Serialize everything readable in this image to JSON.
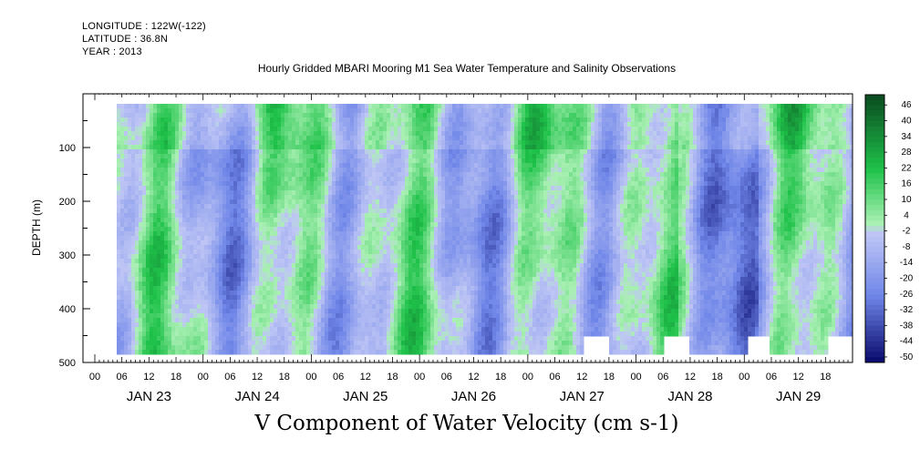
{
  "header": {
    "longitude": "LONGITUDE : 122W(-122)",
    "latitude": "LATITUDE : 36.8N",
    "year": "YEAR : 2013"
  },
  "chart_data": {
    "type": "heatmap",
    "title": "Hourly Gridded MBARI Mooring M1 Sea Water Temperature and Salinity Observations",
    "bottom_title": "V Component of Water Velocity (cm s-1)",
    "ylabel": "DEPTH (m)",
    "ylim": [
      500,
      0
    ],
    "y_ticks": [
      100,
      200,
      300,
      400,
      500
    ],
    "x_hour_labels": [
      "00",
      "06",
      "12",
      "18",
      "00",
      "06",
      "12",
      "18",
      "00",
      "06",
      "12",
      "18",
      "00",
      "06",
      "12",
      "18",
      "00",
      "06",
      "12",
      "18",
      "00",
      "06",
      "12",
      "18",
      "00",
      "06",
      "12",
      "18"
    ],
    "x_day_labels": [
      "JAN 23",
      "JAN 24",
      "JAN 25",
      "JAN 26",
      "JAN 27",
      "JAN 28",
      "JAN 29"
    ],
    "colorbar": {
      "min": -50,
      "max": 50,
      "tick_labels": [
        "46",
        "40",
        "34",
        "28",
        "22",
        "16",
        "10",
        "4",
        "-2",
        "-8",
        "-14",
        "-20",
        "-26",
        "-32",
        "-38",
        "-44",
        "-50"
      ]
    },
    "colors": {
      "positive_dark": "#0a4a1f",
      "positive_mid": "#1fc24a",
      "positive_light": "#a9f0b3",
      "negative_light": "#bfc6f5",
      "negative_mid": "#6f86e8",
      "negative_dark": "#07096b"
    }
  }
}
